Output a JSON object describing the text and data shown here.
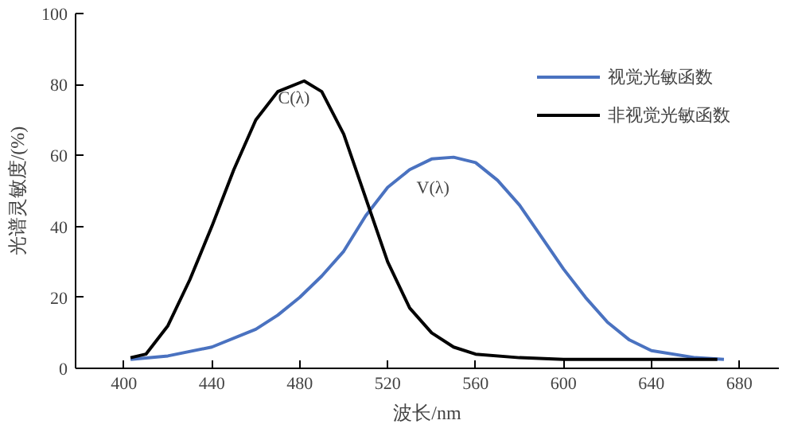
{
  "chart_data": {
    "type": "line",
    "xlabel": "波长/nm",
    "ylabel": "光谱灵敏度/(%)",
    "xlim": [
      378,
      698
    ],
    "xticks": [
      400,
      440,
      480,
      520,
      560,
      600,
      640,
      680
    ],
    "ylim": [
      0,
      100
    ],
    "yticks": [
      0,
      20,
      40,
      60,
      80,
      100
    ],
    "grid": false,
    "legend": "top right",
    "line_style": "solid",
    "marker": "none",
    "annotations": [
      "C(λ)",
      "V(λ)"
    ],
    "series": [
      {
        "name": "视觉光敏函数",
        "color": "#4a72c0",
        "x": [
          403,
          420,
          440,
          460,
          470,
          480,
          490,
          500,
          510,
          520,
          530,
          540,
          550,
          560,
          570,
          580,
          590,
          600,
          610,
          620,
          630,
          640,
          660,
          673
        ],
        "values": [
          2.5,
          3.5,
          6,
          11,
          15,
          20,
          26,
          33,
          43,
          51,
          56,
          59,
          59.5,
          58,
          53,
          46,
          37,
          28,
          20,
          13,
          8,
          5,
          3,
          2.5
        ]
      },
      {
        "name": "非视觉光敏函数",
        "color": "#000000",
        "x": [
          403,
          410,
          420,
          430,
          440,
          450,
          460,
          470,
          482,
          490,
          500,
          510,
          520,
          530,
          540,
          550,
          560,
          580,
          600,
          640,
          670
        ],
        "values": [
          3,
          4,
          12,
          25,
          40,
          56,
          70,
          78,
          81,
          78,
          66,
          48,
          30,
          17,
          10,
          6,
          4,
          3,
          2.5,
          2.5,
          2.5
        ]
      }
    ]
  }
}
